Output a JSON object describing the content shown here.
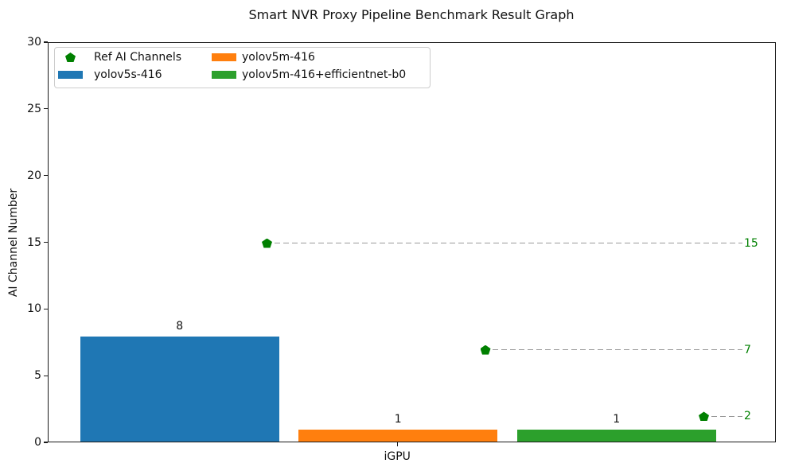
{
  "chart_data": {
    "type": "bar",
    "title": "Smart NVR Proxy Pipeline Benchmark Result Graph",
    "xlabel": "",
    "ylabel": "AI Channel Number",
    "categories": [
      "iGPU"
    ],
    "ylim": [
      0,
      30
    ],
    "yticks": [
      0,
      5,
      10,
      15,
      20,
      25,
      30
    ],
    "grid": false,
    "legend_position": "upper left",
    "series": [
      {
        "name": "yolov5s-416",
        "color": "#1f77b4",
        "values": [
          8
        ],
        "ref_ai_channels": [
          15
        ]
      },
      {
        "name": "yolov5m-416",
        "color": "#ff7f0e",
        "values": [
          1
        ],
        "ref_ai_channels": [
          7
        ]
      },
      {
        "name": "yolov5m-416+efficientnet-b0",
        "color": "#2ca02c",
        "values": [
          1
        ],
        "ref_ai_channels": [
          2
        ]
      }
    ],
    "ref_marker": {
      "label": "Ref AI Channels",
      "shape": "pentagon",
      "color": "#008000",
      "line_style": "dashed",
      "line_color": "#999999"
    }
  },
  "legend": {
    "items": [
      {
        "label": "Ref AI Channels",
        "marker": "pentagon",
        "color": "#008000"
      },
      {
        "label": "yolov5s-416",
        "marker": "swatch",
        "color": "#1f77b4"
      },
      {
        "label": "yolov5m-416",
        "marker": "swatch",
        "color": "#ff7f0e"
      },
      {
        "label": "yolov5m-416+efficientnet-b0",
        "marker": "swatch",
        "color": "#2ca02c"
      }
    ]
  }
}
